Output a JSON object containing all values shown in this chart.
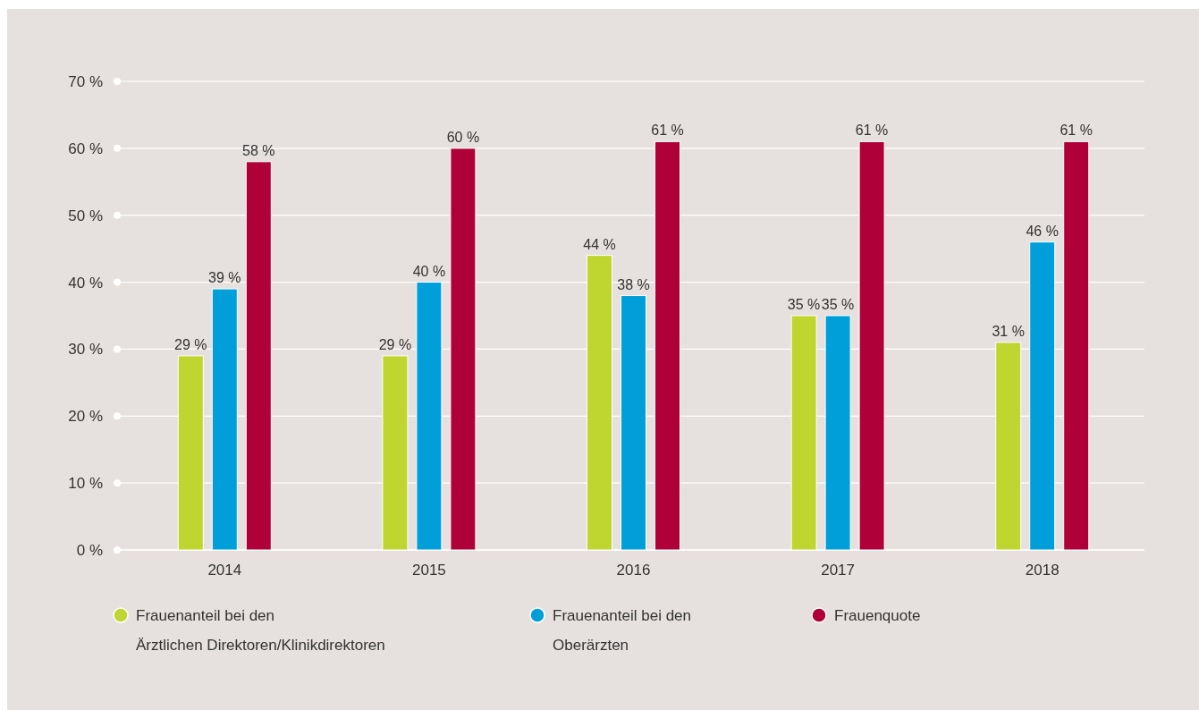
{
  "chart_data": {
    "type": "bar",
    "categories": [
      "2014",
      "2015",
      "2016",
      "2017",
      "2018"
    ],
    "series": [
      {
        "name": "Frauenanteil bei den Ärztlichen Direktoren/Klinikdirektoren",
        "color": "#bed62f",
        "values": [
          29,
          29,
          44,
          35,
          31
        ],
        "value_labels": [
          "29 %",
          "29 %",
          "44 %",
          "35 %",
          "31 %"
        ]
      },
      {
        "name": "Frauenanteil bei den Oberärzten",
        "color": "#009fda",
        "values": [
          39,
          40,
          38,
          35,
          46
        ],
        "value_labels": [
          "39 %",
          "40 %",
          "38 %",
          "35 %",
          "46 %"
        ]
      },
      {
        "name": "Frauenquote",
        "color": "#b0003a",
        "values": [
          58,
          60,
          61,
          61,
          61
        ],
        "value_labels": [
          "58 %",
          "60 %",
          "61 %",
          "61 %",
          "61 %"
        ]
      }
    ],
    "ylim": [
      0,
      70
    ],
    "yticks": [
      {
        "value": 0,
        "label": "0 %"
      },
      {
        "value": 10,
        "label": "10 %"
      },
      {
        "value": 20,
        "label": "20 %"
      },
      {
        "value": 30,
        "label": "30 %"
      },
      {
        "value": 40,
        "label": "40 %"
      },
      {
        "value": 50,
        "label": "50 %"
      },
      {
        "value": 60,
        "label": "60 %"
      },
      {
        "value": 70,
        "label": "70 %"
      }
    ],
    "grid": "y",
    "legend": "bottom"
  }
}
